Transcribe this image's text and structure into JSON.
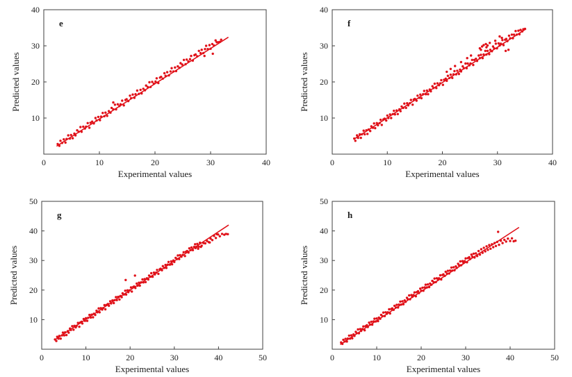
{
  "figure": {
    "background": "#ffffff",
    "accent_color": "#e01119",
    "frame_color": "#3f3f3f",
    "text_color": "#1c1c1c"
  },
  "chart_data": [
    {
      "type": "scatter",
      "panel_label": "e",
      "xlabel": "Experimental values",
      "ylabel": "Predicted values",
      "xlim": [
        0,
        40
      ],
      "ylim": [
        0,
        40
      ],
      "xticks": [
        0,
        10,
        20,
        30,
        40
      ],
      "yticks": [
        10,
        20,
        30,
        40
      ],
      "grid": false,
      "legend": "none",
      "fit_line": {
        "x1": 2.3,
        "y1": 2.2,
        "x2": 33.2,
        "y2": 32.4
      },
      "points_xy": [
        2.5,
        2.8,
        2.8,
        2.3,
        3.0,
        3.7,
        3.3,
        3.1,
        3.6,
        4.1,
        3.9,
        3.2,
        4.1,
        4.2,
        4.4,
        5.2,
        4.7,
        4.3,
        4.9,
        5.3,
        5.2,
        4.4,
        5.5,
        5.7,
        5.7,
        5.2,
        6.0,
        6.6,
        6.3,
        6.2,
        6.6,
        7.5,
        6.8,
        6.2,
        7.1,
        7.6,
        7.4,
        7.1,
        7.6,
        7.6,
        7.9,
        8.6,
        8.2,
        7.3,
        8.4,
        8.7,
        8.7,
        9.0,
        9.0,
        8.5,
        9.3,
        10.0,
        9.5,
        9.3,
        9.8,
        10.3,
        10.1,
        9.4,
        10.3,
        10.4,
        10.6,
        11.4,
        10.9,
        10.5,
        11.1,
        11.5,
        11.4,
        10.6,
        11.7,
        11.9,
        12.0,
        11.5,
        12.2,
        12.8,
        12.5,
        12.4,
        12.8,
        13.7,
        13.0,
        12.4,
        13.3,
        13.8,
        13.6,
        13.3,
        13.8,
        13.8,
        14.1,
        14.8,
        14.4,
        13.5,
        14.7,
        15.0,
        14.9,
        15.2,
        15.2,
        14.7,
        15.5,
        16.2,
        15.7,
        15.5,
        16.0,
        16.5,
        16.3,
        15.6,
        16.5,
        16.6,
        16.8,
        17.6,
        17.1,
        16.7,
        17.4,
        17.8,
        17.6,
        16.8,
        17.9,
        18.1,
        18.2,
        17.7,
        18.4,
        19.0,
        18.7,
        18.6,
        19.0,
        19.9,
        19.2,
        18.6,
        19.5,
        20.0,
        19.8,
        19.5,
        20.1,
        20.1,
        20.3,
        21.0,
        20.6,
        19.7,
        20.9,
        21.2,
        21.1,
        21.4,
        21.4,
        20.9,
        21.7,
        22.4,
        21.9,
        21.7,
        22.2,
        22.7,
        22.5,
        21.8,
        22.8,
        22.9,
        23.0,
        23.8,
        23.3,
        22.9,
        23.6,
        24.0,
        23.8,
        23.0,
        24.1,
        24.3,
        24.4,
        23.9,
        24.6,
        25.2,
        24.9,
        24.8,
        25.2,
        26.1,
        25.5,
        24.9,
        25.7,
        26.2,
        26.0,
        25.7,
        26.3,
        26.3,
        26.5,
        27.2,
        26.8,
        25.9,
        27.1,
        27.4,
        27.3,
        27.6,
        27.6,
        27.1,
        27.9,
        28.6,
        28.2,
        28.0,
        28.4,
        28.9,
        28.7,
        28.0,
        29.0,
        29.1,
        29.2,
        30.0,
        29.5,
        29.1,
        29.8,
        30.2,
        30.0,
        29.2,
        30.3,
        30.5,
        30.6,
        30.1,
        30.9,
        31.5,
        31.1,
        31.0,
        31.4,
        31.0,
        31.7,
        31.1,
        31.9,
        31.7,
        30.4,
        27.8,
        28.9,
        27.2,
        12.5,
        14.3
      ]
    },
    {
      "type": "scatter",
      "panel_label": "f",
      "xlabel": "Experimental values",
      "ylabel": "Predicted values",
      "xlim": [
        0,
        40
      ],
      "ylim": [
        0,
        40
      ],
      "xticks": [
        0,
        10,
        20,
        30,
        40
      ],
      "yticks": [
        10,
        20,
        30,
        40
      ],
      "grid": false,
      "legend": "none",
      "fit_line": {
        "x1": 4.0,
        "y1": 4.2,
        "x2": 35.2,
        "y2": 34.7
      },
      "points_xy": [
        4.0,
        4.3,
        4.2,
        3.7,
        4.5,
        5.2,
        4.7,
        4.5,
        5.0,
        5.5,
        5.2,
        4.5,
        5.4,
        5.5,
        5.7,
        6.5,
        5.9,
        5.5,
        6.2,
        6.6,
        6.4,
        5.6,
        6.6,
        6.8,
        6.9,
        6.4,
        7.1,
        7.7,
        7.4,
        7.3,
        7.6,
        8.5,
        7.8,
        7.2,
        8.1,
        8.6,
        8.3,
        8.0,
        8.6,
        8.6,
        8.8,
        9.5,
        9.0,
        8.1,
        9.3,
        9.6,
        9.5,
        9.8,
        9.8,
        9.3,
        10.0,
        10.7,
        10.2,
        10.0,
        10.5,
        11.0,
        10.7,
        10.0,
        11.0,
        11.1,
        11.2,
        12.0,
        11.4,
        11.0,
        11.7,
        12.1,
        11.9,
        11.1,
        12.2,
        12.4,
        12.4,
        11.9,
        12.6,
        13.2,
        12.9,
        12.8,
        13.1,
        14.0,
        13.4,
        12.8,
        13.6,
        14.1,
        13.8,
        13.5,
        14.1,
        14.1,
        14.3,
        15.0,
        14.6,
        13.7,
        14.8,
        15.1,
        15.0,
        15.3,
        15.3,
        14.8,
        15.5,
        16.2,
        15.8,
        15.6,
        16.0,
        16.5,
        16.2,
        15.5,
        16.5,
        16.6,
        16.7,
        17.5,
        17.0,
        16.6,
        17.2,
        17.6,
        17.4,
        16.6,
        17.7,
        17.9,
        17.9,
        17.4,
        18.2,
        18.8,
        18.4,
        18.3,
        18.6,
        19.5,
        18.9,
        18.3,
        19.1,
        19.6,
        19.4,
        19.1,
        19.6,
        19.6,
        19.8,
        20.5,
        20.1,
        19.2,
        20.3,
        20.6,
        20.6,
        20.9,
        20.8,
        20.3,
        21.0,
        21.7,
        21.3,
        21.1,
        21.5,
        22.0,
        21.8,
        21.1,
        22.0,
        22.1,
        22.2,
        23.0,
        22.5,
        22.1,
        22.7,
        23.1,
        23.0,
        22.2,
        23.2,
        23.4,
        23.4,
        22.9,
        23.7,
        24.3,
        23.9,
        23.8,
        24.2,
        25.1,
        24.4,
        23.8,
        24.6,
        25.1,
        24.9,
        24.6,
        25.1,
        25.1,
        25.4,
        26.1,
        25.6,
        24.7,
        25.8,
        26.1,
        26.1,
        26.4,
        26.3,
        25.8,
        26.6,
        27.3,
        26.8,
        26.6,
        27.0,
        27.5,
        27.3,
        26.6,
        27.5,
        27.6,
        27.8,
        28.6,
        28.0,
        27.6,
        28.2,
        28.6,
        28.5,
        27.7,
        28.7,
        28.9,
        29.0,
        28.5,
        29.2,
        29.8,
        29.4,
        29.3,
        29.7,
        30.6,
        29.9,
        29.3,
        30.2,
        30.7,
        30.4,
        30.1,
        30.6,
        30.6,
        30.9,
        31.6,
        31.1,
        30.2,
        31.4,
        31.7,
        31.6,
        31.9,
        31.8,
        31.3,
        32.1,
        32.8,
        32.3,
        32.1,
        32.6,
        33.1,
        32.8,
        32.1,
        33.0,
        33.1,
        33.3,
        34.1,
        33.5,
        33.1,
        33.8,
        34.2,
        34.0,
        33.2,
        34.2,
        34.4,
        34.5,
        34.0,
        34.7,
        34.6,
        35.0,
        34.7,
        26.8,
        29.3,
        27.2,
        29.8,
        27.5,
        30.2,
        27.9,
        30.5,
        28.2,
        30.1,
        28.6,
        30.8,
        27.0,
        28.9,
        28.0,
        29.6,
        24.5,
        26.6,
        25.2,
        27.3,
        23.4,
        25.5,
        30.4,
        32.6,
        30.8,
        32.2,
        29.6,
        31.4,
        21.5,
        23.6,
        22.3,
        24.4,
        20.8,
        22.8,
        31.5,
        28.6,
        32.0,
        28.9
      ]
    },
    {
      "type": "scatter",
      "panel_label": "g",
      "xlabel": "Experimental values",
      "ylabel": "Predicted values",
      "xlim": [
        0,
        50
      ],
      "ylim": [
        0,
        50
      ],
      "xticks": [
        0,
        10,
        20,
        30,
        40,
        50
      ],
      "yticks": [
        10,
        20,
        30,
        40,
        50
      ],
      "grid": false,
      "legend": "none",
      "fit_line": {
        "x1": 3.0,
        "y1": 3.2,
        "x2": 42.3,
        "y2": 42.0
      },
      "points_xy": [
        3.0,
        3.3,
        3.3,
        2.8,
        3.5,
        4.2,
        3.8,
        3.6,
        4.0,
        4.5,
        4.3,
        3.6,
        4.6,
        4.7,
        4.8,
        5.6,
        5.1,
        4.7,
        5.3,
        5.7,
        5.6,
        4.8,
        5.9,
        6.1,
        6.1,
        5.6,
        6.4,
        7.0,
        6.6,
        6.5,
        6.9,
        7.8,
        7.2,
        6.6,
        7.4,
        7.9,
        7.7,
        7.4,
        7.9,
        7.9,
        8.2,
        8.9,
        8.5,
        7.6,
        8.7,
        9.0,
        9.0,
        9.3,
        9.2,
        8.7,
        9.5,
        10.2,
        9.8,
        9.6,
        10.0,
        10.5,
        10.3,
        9.6,
        10.5,
        10.6,
        10.8,
        11.6,
        11.1,
        10.7,
        11.3,
        11.7,
        11.6,
        10.8,
        11.8,
        12.0,
        12.1,
        11.6,
        12.4,
        13.0,
        12.6,
        12.5,
        12.9,
        13.8,
        13.1,
        12.5,
        13.4,
        13.9,
        13.7,
        13.4,
        13.9,
        13.9,
        14.2,
        14.9,
        14.4,
        13.5,
        14.7,
        15.0,
        15.0,
        15.3,
        15.2,
        14.7,
        15.5,
        16.2,
        15.7,
        15.5,
        16.0,
        16.5,
        16.3,
        15.6,
        16.5,
        16.6,
        16.8,
        17.6,
        17.0,
        16.6,
        17.3,
        17.7,
        17.6,
        16.8,
        17.8,
        18.0,
        18.1,
        17.6,
        18.3,
        18.9,
        18.6,
        18.5,
        18.9,
        19.8,
        19.1,
        18.5,
        19.4,
        19.9,
        19.6,
        19.3,
        19.9,
        19.9,
        20.2,
        20.9,
        20.4,
        19.5,
        20.7,
        21.0,
        20.9,
        21.2,
        21.2,
        20.7,
        21.5,
        22.2,
        21.7,
        21.5,
        22.0,
        22.5,
        22.2,
        21.5,
        22.5,
        22.6,
        22.8,
        23.6,
        23.0,
        22.6,
        23.3,
        23.7,
        23.5,
        22.7,
        23.8,
        24.0,
        24.1,
        23.6,
        24.3,
        24.9,
        24.6,
        24.5,
        24.8,
        25.7,
        25.1,
        24.5,
        25.4,
        25.9,
        25.6,
        25.3,
        25.9,
        25.9,
        26.1,
        26.8,
        26.4,
        25.5,
        26.7,
        27.0,
        26.9,
        27.2,
        27.2,
        26.7,
        27.4,
        28.1,
        27.7,
        27.5,
        28.0,
        28.5,
        28.2,
        27.5,
        28.5,
        28.6,
        28.7,
        29.5,
        29.0,
        28.6,
        29.3,
        29.7,
        29.5,
        28.7,
        29.8,
        30.0,
        30.0,
        29.5,
        30.3,
        30.9,
        30.6,
        30.5,
        30.8,
        31.7,
        31.1,
        30.5,
        31.3,
        31.8,
        31.6,
        31.3,
        31.9,
        31.9,
        32.1,
        32.8,
        32.4,
        31.5,
        32.6,
        32.9,
        32.9,
        33.2,
        33.2,
        32.7,
        33.4,
        34.1,
        33.7,
        33.5,
        33.9,
        34.4,
        34.2,
        33.5,
        34.5,
        34.6,
        34.7,
        35.5,
        35.0,
        34.6,
        35.2,
        35.6,
        35.5,
        34.7,
        35.8,
        36.0,
        36.2,
        35.0,
        36.6,
        35.9,
        37.0,
        35.8,
        37.4,
        36.6,
        37.8,
        36.2,
        38.2,
        37.4,
        38.6,
        36.9,
        39.0,
        38.3,
        39.4,
        37.6,
        39.9,
        38.8,
        40.3,
        38.2,
        40.8,
        39.0,
        41.3,
        38.7,
        41.7,
        39.0,
        42.1,
        38.9,
        36.0,
        34.6,
        38.0,
        36.1,
        39.6,
        38.9,
        34.8,
        34.2,
        35.4,
        34.0,
        19.0,
        23.4,
        21.1,
        24.9
      ]
    },
    {
      "type": "scatter",
      "panel_label": "h",
      "xlabel": "Experimental values",
      "ylabel": "Predicted values",
      "xlim": [
        0,
        50
      ],
      "ylim": [
        0,
        50
      ],
      "xticks": [
        0,
        10,
        20,
        30,
        40,
        50
      ],
      "yticks": [
        10,
        20,
        30,
        40,
        50
      ],
      "grid": false,
      "legend": "none",
      "fit_line": {
        "x1": 1.8,
        "y1": 1.6,
        "x2": 42.0,
        "y2": 41.2
      },
      "points_xy": [
        2.0,
        2.3,
        2.3,
        1.8,
        2.5,
        3.2,
        2.8,
        2.6,
        3.0,
        3.5,
        3.3,
        2.6,
        3.5,
        3.6,
        3.8,
        4.6,
        4.0,
        3.6,
        4.3,
        4.7,
        4.5,
        3.7,
        4.8,
        5.0,
        5.0,
        4.5,
        5.3,
        5.9,
        5.5,
        5.4,
        5.8,
        6.7,
        6.0,
        5.4,
        6.3,
        6.8,
        6.5,
        6.2,
        6.8,
        6.8,
        7.0,
        7.7,
        7.3,
        6.4,
        7.5,
        7.8,
        7.8,
        8.1,
        8.0,
        7.5,
        8.3,
        9.0,
        8.5,
        8.3,
        8.8,
        9.3,
        9.0,
        8.3,
        9.3,
        9.4,
        9.5,
        10.3,
        9.8,
        9.4,
        10.0,
        10.4,
        10.3,
        9.5,
        10.5,
        10.7,
        10.8,
        10.3,
        11.0,
        11.6,
        11.3,
        11.2,
        11.5,
        12.4,
        11.8,
        11.2,
        12.0,
        12.5,
        12.3,
        12.0,
        12.5,
        12.5,
        12.8,
        13.5,
        13.0,
        12.1,
        13.3,
        13.6,
        13.5,
        13.8,
        13.8,
        13.3,
        14.0,
        14.7,
        14.3,
        14.1,
        14.5,
        15.0,
        14.8,
        14.1,
        15.0,
        15.1,
        15.3,
        16.1,
        15.5,
        15.1,
        15.8,
        16.2,
        16.0,
        15.2,
        16.3,
        16.5,
        16.5,
        16.0,
        16.8,
        17.4,
        17.0,
        16.9,
        17.3,
        18.2,
        17.5,
        16.9,
        17.8,
        18.3,
        18.0,
        17.7,
        18.3,
        18.3,
        18.5,
        19.2,
        18.8,
        17.9,
        19.0,
        19.3,
        19.3,
        19.6,
        19.5,
        19.0,
        19.8,
        20.5,
        20.0,
        19.8,
        20.3,
        20.8,
        20.5,
        19.8,
        20.8,
        20.9,
        21.0,
        21.8,
        21.3,
        20.9,
        21.5,
        21.9,
        21.8,
        21.0,
        22.0,
        22.2,
        22.3,
        21.8,
        22.5,
        23.1,
        22.8,
        22.7,
        23.0,
        23.9,
        23.3,
        22.7,
        23.5,
        24.0,
        23.8,
        23.5,
        24.0,
        24.0,
        24.3,
        25.0,
        24.5,
        23.6,
        24.8,
        25.1,
        25.0,
        25.3,
        25.3,
        24.8,
        25.5,
        26.2,
        25.8,
        25.6,
        26.0,
        26.5,
        26.3,
        25.6,
        26.5,
        26.6,
        26.8,
        27.6,
        27.0,
        26.6,
        27.3,
        27.7,
        27.5,
        26.7,
        27.8,
        28.0,
        28.0,
        27.5,
        28.3,
        28.9,
        28.5,
        28.4,
        28.8,
        29.7,
        29.0,
        28.4,
        29.3,
        29.8,
        29.5,
        29.2,
        29.8,
        29.8,
        30.0,
        30.7,
        30.3,
        29.4,
        30.5,
        30.8,
        30.8,
        31.1,
        31.0,
        30.5,
        31.3,
        32.0,
        31.5,
        31.3,
        31.8,
        32.3,
        32.0,
        31.0,
        32.3,
        32.4,
        32.6,
        31.5,
        32.9,
        33.2,
        33.2,
        32.0,
        33.5,
        33.8,
        33.8,
        32.6,
        34.1,
        34.3,
        34.4,
        33.1,
        34.7,
        34.8,
        35.0,
        33.6,
        35.3,
        35.2,
        35.6,
        34.0,
        35.9,
        35.5,
        36.2,
        34.5,
        36.5,
        35.9,
        36.8,
        34.9,
        37.1,
        36.3,
        37.5,
        35.3,
        37.9,
        36.7,
        38.3,
        35.9,
        38.7,
        37.0,
        39.1,
        36.4,
        39.5,
        37.4,
        40.0,
        36.6,
        40.4,
        37.5,
        40.8,
        36.5,
        41.2,
        36.7,
        37.3,
        39.7
      ]
    }
  ]
}
